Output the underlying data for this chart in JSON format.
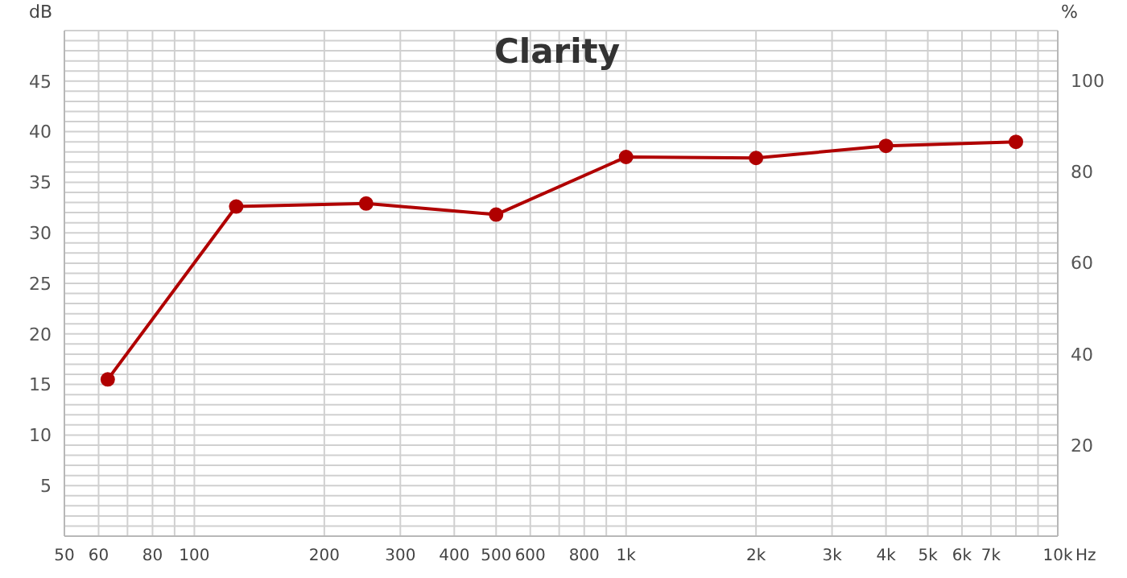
{
  "chart_data": {
    "type": "line",
    "title": "Clarity",
    "ylabel": "dB",
    "y2label": "%",
    "x": [
      63,
      125,
      250,
      500,
      1000,
      2000,
      4000,
      8000
    ],
    "series": [
      {
        "color": "#b00000",
        "values": [
          15.5,
          32.6,
          32.9,
          31.8,
          37.5,
          37.4,
          38.6,
          39.0
        ]
      }
    ],
    "log": "x",
    "xlim": [
      50,
      10000
    ],
    "xticks": [
      50,
      60,
      {
        "value": 70,
        "label": null
      },
      80,
      {
        "value": 90,
        "label": null
      },
      100,
      200,
      300,
      400,
      500,
      600,
      {
        "value": 700,
        "label": null
      },
      800,
      {
        "value": 900,
        "label": null
      },
      {
        "value": 1000,
        "label": "1k"
      },
      {
        "value": 2000,
        "label": "2k"
      },
      {
        "value": 3000,
        "label": "3k"
      },
      {
        "value": 4000,
        "label": "4k"
      },
      {
        "value": 5000,
        "label": "5k"
      },
      {
        "value": 6000,
        "label": "6k"
      },
      {
        "value": 7000,
        "label": "7k"
      },
      {
        "value": 8000,
        "label": null
      },
      {
        "value": 9000,
        "label": null
      },
      {
        "value": 10000,
        "label": "10k"
      }
    ],
    "xlabel": "Hz",
    "ylim": [
      0,
      50
    ],
    "yticks": [
      {
        "value": 0,
        "label": null
      },
      {
        "value": 1,
        "label": null
      },
      {
        "value": 2,
        "label": null
      },
      {
        "value": 3,
        "label": null
      },
      {
        "value": 4,
        "label": null
      },
      5,
      {
        "value": 6,
        "label": null
      },
      {
        "value": 7,
        "label": null
      },
      {
        "value": 8,
        "label": null
      },
      {
        "value": 9,
        "label": null
      },
      10,
      {
        "value": 11,
        "label": null
      },
      {
        "value": 12,
        "label": null
      },
      {
        "value": 13,
        "label": null
      },
      {
        "value": 14,
        "label": null
      },
      15,
      {
        "value": 16,
        "label": null
      },
      {
        "value": 17,
        "label": null
      },
      {
        "value": 18,
        "label": null
      },
      {
        "value": 19,
        "label": null
      },
      20,
      {
        "value": 21,
        "label": null
      },
      {
        "value": 22,
        "label": null
      },
      {
        "value": 23,
        "label": null
      },
      {
        "value": 24,
        "label": null
      },
      25,
      {
        "value": 26,
        "label": null
      },
      {
        "value": 27,
        "label": null
      },
      {
        "value": 28,
        "label": null
      },
      {
        "value": 29,
        "label": null
      },
      30,
      {
        "value": 31,
        "label": null
      },
      {
        "value": 32,
        "label": null
      },
      {
        "value": 33,
        "label": null
      },
      {
        "value": 34,
        "label": null
      },
      35,
      {
        "value": 36,
        "label": null
      },
      {
        "value": 37,
        "label": null
      },
      {
        "value": 38,
        "label": null
      },
      {
        "value": 39,
        "label": null
      },
      40,
      {
        "value": 41,
        "label": null
      },
      {
        "value": 42,
        "label": null
      },
      {
        "value": 43,
        "label": null
      },
      {
        "value": 44,
        "label": null
      },
      45,
      {
        "value": 46,
        "label": null
      },
      {
        "value": 47,
        "label": null
      },
      {
        "value": 48,
        "label": null
      },
      {
        "value": 49,
        "label": null
      },
      {
        "value": 50,
        "label": null
      }
    ],
    "y2lim": [
      0,
      111
    ],
    "y2ticks": [
      20,
      40,
      60,
      80,
      100
    ],
    "grid": true,
    "marker": "circle",
    "line_style": "solid",
    "legend": false
  }
}
